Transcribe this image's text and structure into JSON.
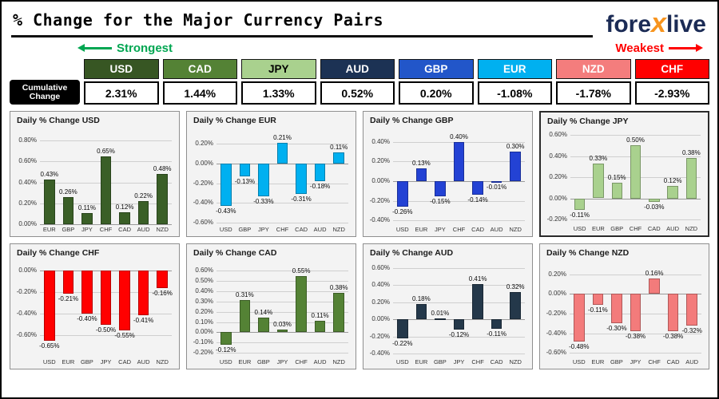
{
  "header": {
    "title": "% Change for the Major Currency Pairs"
  },
  "logo": {
    "part1": "fore",
    "x": "x",
    "part2": "live"
  },
  "legend": {
    "strongest": "Strongest",
    "weakest": "Weakest",
    "strongest_color": "#00A651",
    "weakest_color": "#FF0000"
  },
  "cumulative": {
    "label_line1": "Cumulative",
    "label_line2": "Change",
    "items": [
      {
        "code": "USD",
        "value": "2.31%",
        "color": "#375623",
        "text_color": "#FFFFFF"
      },
      {
        "code": "CAD",
        "value": "1.44%",
        "color": "#548235",
        "text_color": "#FFFFFF"
      },
      {
        "code": "JPY",
        "value": "1.33%",
        "color": "#A9D18E",
        "text_color": "#000000"
      },
      {
        "code": "AUD",
        "value": "0.52%",
        "color": "#1C3254",
        "text_color": "#FFFFFF"
      },
      {
        "code": "GBP",
        "value": "0.20%",
        "color": "#2256C9",
        "text_color": "#FFFFFF"
      },
      {
        "code": "EUR",
        "value": "-1.08%",
        "color": "#00B0F0",
        "text_color": "#FFFFFF"
      },
      {
        "code": "NZD",
        "value": "-1.78%",
        "color": "#F47D7D",
        "text_color": "#FFFFFF"
      },
      {
        "code": "CHF",
        "value": "-2.93%",
        "color": "#FF0000",
        "text_color": "#FFFFFF"
      }
    ]
  },
  "chart_data": [
    {
      "type": "bar",
      "title": "Daily % Change USD",
      "bar_color": "#3A5F27",
      "categories": [
        "EUR",
        "GBP",
        "JPY",
        "CHF",
        "CAD",
        "AUD",
        "NZD"
      ],
      "values": [
        0.43,
        0.26,
        0.11,
        0.65,
        0.12,
        0.22,
        0.48
      ],
      "ylim": [
        0,
        0.88
      ],
      "ticks": [
        0.8,
        0.6,
        0.4,
        0.2,
        0
      ]
    },
    {
      "type": "bar",
      "title": "Daily % Change EUR",
      "bar_color": "#00B0F0",
      "categories": [
        "USD",
        "GBP",
        "JPY",
        "CHF",
        "CAD",
        "AUD",
        "NZD"
      ],
      "values": [
        -0.43,
        -0.13,
        -0.33,
        0.21,
        -0.31,
        -0.18,
        0.11
      ],
      "ylim": [
        -0.62,
        0.32
      ],
      "ticks": [
        0.2,
        0,
        -0.2,
        -0.4,
        -0.6
      ]
    },
    {
      "type": "bar",
      "title": "Daily % Change GBP",
      "bar_color": "#2342D4",
      "categories": [
        "USD",
        "EUR",
        "JPY",
        "CHF",
        "CAD",
        "AUD",
        "NZD"
      ],
      "values": [
        -0.26,
        0.13,
        -0.15,
        0.4,
        -0.14,
        -0.01,
        0.3
      ],
      "ylim": [
        -0.44,
        0.5
      ],
      "ticks": [
        0.4,
        0.2,
        0,
        -0.2,
        -0.4
      ]
    },
    {
      "type": "bar",
      "title": "Daily % Change JPY",
      "bar_color": "#A9D18E",
      "highlight": true,
      "categories": [
        "USD",
        "EUR",
        "GBP",
        "CHF",
        "CAD",
        "AUD",
        "NZD"
      ],
      "values": [
        -0.11,
        0.33,
        0.15,
        0.5,
        -0.03,
        0.12,
        0.38
      ],
      "ylim": [
        -0.24,
        0.62
      ],
      "ticks": [
        0.6,
        0.4,
        0.2,
        0,
        -0.2
      ]
    },
    {
      "type": "bar",
      "title": "Daily % Change CHF",
      "bar_color": "#FF0000",
      "categories": [
        "USD",
        "EUR",
        "GBP",
        "JPY",
        "CAD",
        "AUD",
        "NZD"
      ],
      "values": [
        -0.65,
        -0.21,
        -0.4,
        -0.5,
        -0.55,
        -0.41,
        -0.16
      ],
      "ylim": [
        -0.8,
        0.06
      ],
      "ticks": [
        0,
        -0.2,
        -0.4,
        -0.6
      ]
    },
    {
      "type": "bar",
      "title": "Daily % Change CAD",
      "bar_color": "#548235",
      "categories": [
        "USD",
        "EUR",
        "GBP",
        "JPY",
        "CHF",
        "AUD",
        "NZD"
      ],
      "values": [
        -0.12,
        0.31,
        0.14,
        0.03,
        0.55,
        0.11,
        0.38
      ],
      "ylim": [
        -0.24,
        0.66
      ],
      "ticks": [
        0.6,
        0.5,
        0.4,
        0.3,
        0.2,
        0.1,
        0,
        -0.1,
        -0.2
      ]
    },
    {
      "type": "bar",
      "title": "Daily % Change AUD",
      "bar_color": "#24384A",
      "categories": [
        "USD",
        "EUR",
        "GBP",
        "JPY",
        "CHF",
        "CAD",
        "NZD"
      ],
      "values": [
        -0.22,
        0.18,
        0.01,
        -0.12,
        0.41,
        -0.11,
        0.32
      ],
      "ylim": [
        -0.44,
        0.64
      ],
      "ticks": [
        0.6,
        0.4,
        0.2,
        0,
        -0.2,
        -0.4
      ]
    },
    {
      "type": "bar",
      "title": "Daily % Change NZD",
      "bar_color": "#F37B7B",
      "categories": [
        "USD",
        "EUR",
        "GBP",
        "JPY",
        "CHF",
        "CAD",
        "AUD"
      ],
      "values": [
        -0.48,
        -0.11,
        -0.3,
        -0.38,
        0.16,
        -0.38,
        -0.32
      ],
      "ylim": [
        -0.64,
        0.3
      ],
      "ticks": [
        0.2,
        0,
        -0.2,
        -0.4,
        -0.6
      ]
    }
  ]
}
